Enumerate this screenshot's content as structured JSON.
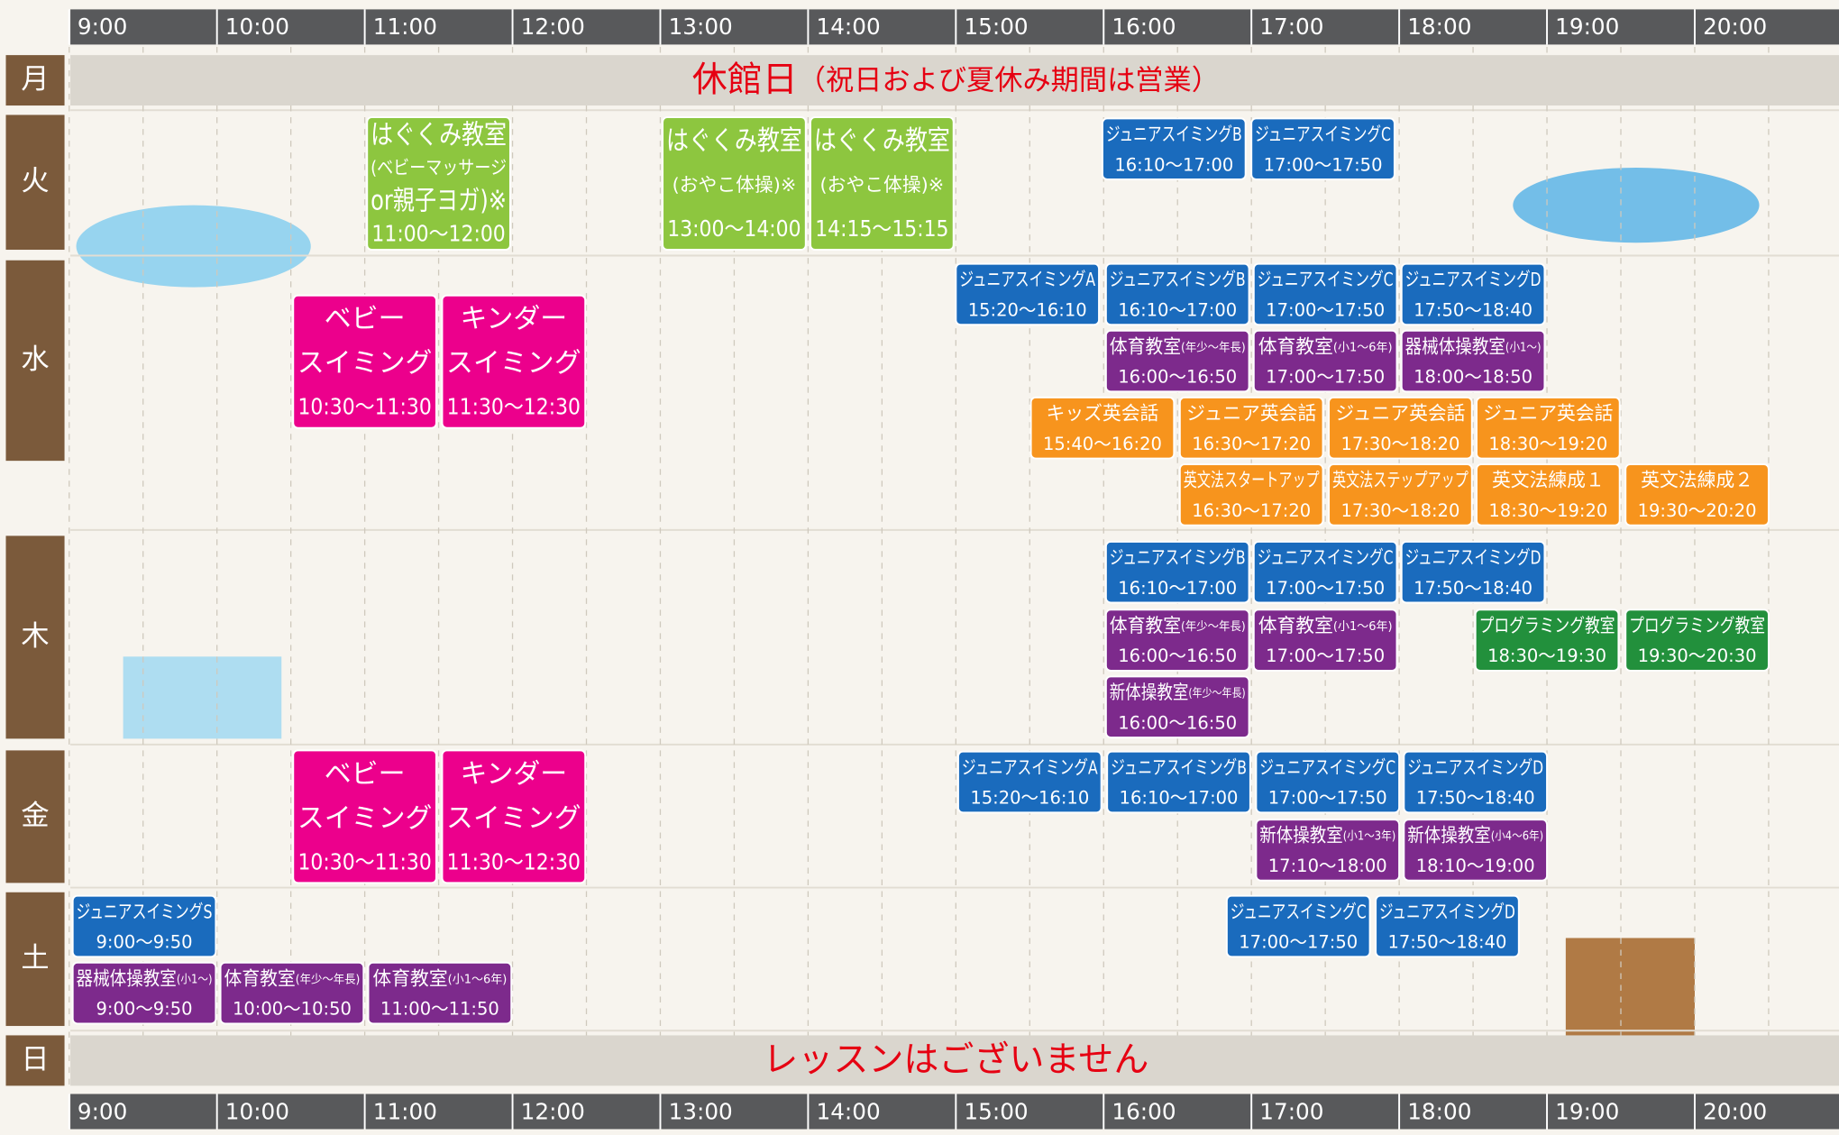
{
  "time_axis": [
    "9:00",
    "10:00",
    "11:00",
    "12:00",
    "13:00",
    "14:00",
    "15:00",
    "16:00",
    "17:00",
    "18:00",
    "19:00",
    "20:00"
  ],
  "days": [
    {
      "label": "月",
      "note": "休館日",
      "note_sub": "（祝日および夏休み期間は営業）"
    },
    {
      "label": "火",
      "lessons": [
        {
          "lines": [
            "はぐくみ教室",
            "(ベビーマッサージ",
            "or親子ヨガ)※"
          ],
          "time": "11:00〜12:00"
        },
        {
          "lines": [
            "はぐくみ教室",
            "(おやこ体操)※"
          ],
          "time": "13:00〜14:00"
        },
        {
          "lines": [
            "はぐくみ教室",
            "(おやこ体操)※"
          ],
          "time": "14:15〜15:15"
        },
        {
          "lines": [
            "ジュニアスイミングB"
          ],
          "time": "16:10〜17:00"
        },
        {
          "lines": [
            "ジュニアスイミングC"
          ],
          "time": "17:00〜17:50"
        }
      ]
    },
    {
      "label": "水",
      "lessons": [
        {
          "lines": [
            "ベビー",
            "スイミング"
          ],
          "time": "10:30〜11:30"
        },
        {
          "lines": [
            "キンダー",
            "スイミング"
          ],
          "time": "11:30〜12:30"
        },
        {
          "lines": [
            "ジュニアスイミングA"
          ],
          "time": "15:20〜16:10"
        },
        {
          "lines": [
            "ジュニアスイミングB"
          ],
          "time": "16:10〜17:00"
        },
        {
          "lines": [
            "ジュニアスイミングC"
          ],
          "time": "17:00〜17:50"
        },
        {
          "lines": [
            "ジュニアスイミングD"
          ],
          "time": "17:50〜18:40"
        },
        {
          "lines": [
            "体育教室"
          ],
          "note": "(年少〜年長)",
          "time": "16:00〜16:50"
        },
        {
          "lines": [
            "体育教室"
          ],
          "note": "(小1〜6年)",
          "time": "17:00〜17:50"
        },
        {
          "lines": [
            "器械体操教室"
          ],
          "note": "(小1〜)",
          "time": "18:00〜18:50"
        },
        {
          "lines": [
            "キッズ英会話"
          ],
          "time": "15:40〜16:20"
        },
        {
          "lines": [
            "ジュニア英会話"
          ],
          "time": "16:30〜17:20"
        },
        {
          "lines": [
            "ジュニア英会話"
          ],
          "time": "17:30〜18:20"
        },
        {
          "lines": [
            "ジュニア英会話"
          ],
          "time": "18:30〜19:20"
        },
        {
          "lines": [
            "英文法スタートアップ"
          ],
          "time": "16:30〜17:20"
        },
        {
          "lines": [
            "英文法ステップアップ"
          ],
          "time": "17:30〜18:20"
        },
        {
          "lines": [
            "英文法練成１"
          ],
          "time": "18:30〜19:20"
        },
        {
          "lines": [
            "英文法練成２"
          ],
          "time": "19:30〜20:20"
        }
      ]
    },
    {
      "label": "木",
      "lessons": [
        {
          "lines": [
            "ジュニアスイミングB"
          ],
          "time": "16:10〜17:00"
        },
        {
          "lines": [
            "ジュニアスイミングC"
          ],
          "time": "17:00〜17:50"
        },
        {
          "lines": [
            "ジュニアスイミングD"
          ],
          "time": "17:50〜18:40"
        },
        {
          "lines": [
            "体育教室"
          ],
          "note": "(年少〜年長)",
          "time": "16:00〜16:50"
        },
        {
          "lines": [
            "体育教室"
          ],
          "note": "(小1〜6年)",
          "time": "17:00〜17:50"
        },
        {
          "lines": [
            "プログラミング教室"
          ],
          "time": "18:30〜19:30"
        },
        {
          "lines": [
            "プログラミング教室"
          ],
          "time": "19:30〜20:30"
        },
        {
          "lines": [
            "新体操教室"
          ],
          "note": "(年少〜年長)",
          "time": "16:00〜16:50"
        }
      ]
    },
    {
      "label": "金",
      "lessons": [
        {
          "lines": [
            "ベビー",
            "スイミング"
          ],
          "time": "10:30〜11:30"
        },
        {
          "lines": [
            "キンダー",
            "スイミング"
          ],
          "time": "11:30〜12:30"
        },
        {
          "lines": [
            "ジュニアスイミングA"
          ],
          "time": "15:20〜16:10"
        },
        {
          "lines": [
            "ジュニアスイミングB"
          ],
          "time": "16:10〜17:00"
        },
        {
          "lines": [
            "ジュニアスイミングC"
          ],
          "time": "17:00〜17:50"
        },
        {
          "lines": [
            "ジュニアスイミングD"
          ],
          "time": "17:50〜18:40"
        },
        {
          "lines": [
            "新体操教室"
          ],
          "note": "(小1〜3年)",
          "time": "17:10〜18:00"
        },
        {
          "lines": [
            "新体操教室"
          ],
          "note": "(小4〜6年)",
          "time": "18:10〜19:00"
        }
      ]
    },
    {
      "label": "土",
      "lessons": [
        {
          "lines": [
            "ジュニアスイミングS"
          ],
          "time": "9:00〜9:50"
        },
        {
          "lines": [
            "器械体操教室"
          ],
          "note": "(小1〜)",
          "time": "9:00〜9:50"
        },
        {
          "lines": [
            "体育教室"
          ],
          "note": "(年少〜年長)",
          "time": "10:00〜10:50"
        },
        {
          "lines": [
            "体育教室"
          ],
          "note": "(小1〜6年)",
          "time": "11:00〜11:50"
        },
        {
          "lines": [
            "ジュニアスイミングC"
          ],
          "time": "17:00〜17:50"
        },
        {
          "lines": [
            "ジュニアスイミングD"
          ],
          "time": "17:50〜18:40"
        }
      ]
    },
    {
      "label": "日",
      "note": "レッスンはございません"
    }
  ]
}
